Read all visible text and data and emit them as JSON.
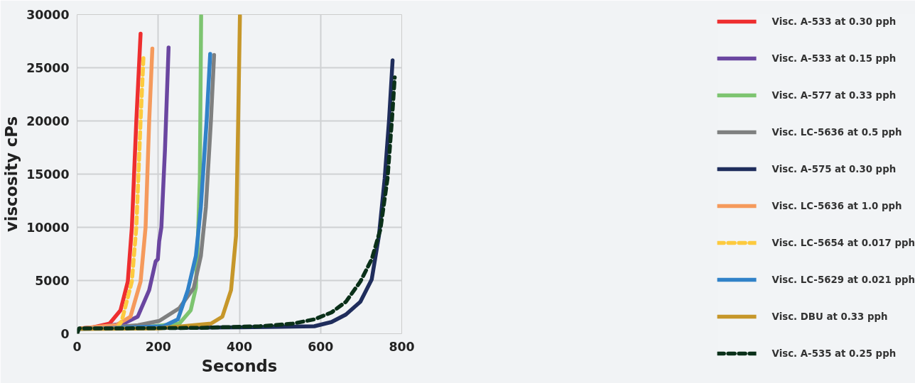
{
  "chart_data": {
    "type": "line",
    "xlabel": "Seconds",
    "ylabel": "viscosity cPs",
    "xlim": [
      0,
      800
    ],
    "xticks": [
      0,
      200,
      400,
      600,
      800
    ],
    "ylim": [
      0,
      30000
    ],
    "yticks": [
      0,
      5000,
      10000,
      15000,
      20000,
      25000,
      30000
    ],
    "grid": true,
    "legend": "right",
    "line_style": "solid",
    "series": [
      {
        "name": "Visc. A-533 at 0.30 pph",
        "color": "#ee2e2f",
        "x": [
          10,
          40,
          80,
          107,
          125,
          135,
          146,
          156.5
        ],
        "values": [
          500,
          600,
          950,
          2200,
          4900,
          10000,
          20000,
          28200
        ]
      },
      {
        "name": "Visc. A-533 at 0.15 pph",
        "color": "#6a46a0",
        "x": [
          10,
          60,
          114,
          149.4,
          177.7,
          193.6,
          199,
          202.4,
          207.7,
          216.6,
          225.5
        ],
        "values": [
          500,
          650,
          950,
          1600,
          4100,
          6800,
          7000,
          8700,
          10000,
          17300,
          26900
        ]
      },
      {
        "name": "Visc. A-577 at 0.33 pph",
        "color": "#7dc470",
        "x": [
          10,
          150,
          252,
          280,
          292.7,
          298,
          302.5,
          305.7
        ],
        "values": [
          500,
          550,
          950,
          2200,
          4300,
          9200,
          14600,
          29900
        ]
      },
      {
        "name": "Visc. LC-5636 at 0.5 pph",
        "color": "#7f8080",
        "x": [
          10,
          100,
          150,
          202.4,
          252,
          287.4,
          305,
          317.4,
          329.8,
          337.6
        ],
        "values": [
          500,
          650,
          800,
          1200,
          2400,
          4300,
          7300,
          11900,
          20000,
          26200
        ]
      },
      {
        "name": "Visc. A-575 at 0.30 pph",
        "color": "#1f2d5c",
        "x": [
          10,
          200,
          400,
          500,
          584.6,
          627,
          662.4,
          698,
          726,
          743.8,
          758,
          768.6,
          777.5
        ],
        "values": [
          500,
          550,
          600,
          650,
          700,
          1100,
          1800,
          3000,
          5100,
          9200,
          14600,
          20000,
          25700
        ]
      },
      {
        "name": "Visc. LC-5636 at 1.0 pph",
        "color": "#f59a5c",
        "x": [
          10,
          50,
          96,
          131.6,
          156.5,
          168.8,
          177.7,
          185.5
        ],
        "values": [
          500,
          650,
          800,
          1600,
          4900,
          10000,
          20000,
          26800
        ]
      },
      {
        "name": "Visc. LC-5654 at 0.017 pph",
        "color": "#fdca3e",
        "line_style": "dashed",
        "x": [
          100,
          110,
          135,
          146,
          156.5,
          163.5
        ],
        "values": [
          600,
          1200,
          4900,
          10000,
          20000,
          25900
        ]
      },
      {
        "name": "Visc. LC-5629 at 0.021 pph",
        "color": "#3182c8",
        "x": [
          10,
          100,
          213,
          248.4,
          273,
          292.7,
          305,
          319.2,
          328
        ],
        "values": [
          450,
          550,
          700,
          1350,
          4100,
          7300,
          11900,
          20000,
          26300
        ]
      },
      {
        "name": "Visc. DBU at 0.33 pph",
        "color": "#c6972a",
        "x": [
          10,
          200,
          330,
          358,
          379.4,
          391.7,
          397,
          401.3
        ],
        "values": [
          450,
          500,
          950,
          1600,
          4100,
          9200,
          20000,
          29900
        ]
      },
      {
        "name": "Visc. A-535 at 0.25 pph",
        "color": "#0a3019",
        "line_style": "dashed",
        "x": [
          0,
          5,
          100,
          300,
          450,
          531.5,
          584.6,
          627,
          662.4,
          698,
          726,
          747.4,
          765,
          775.7,
          782.8
        ],
        "values": [
          0,
          500,
          500,
          550,
          700,
          950,
          1350,
          2000,
          3000,
          4900,
          7000,
          9800,
          14600,
          20000,
          24100
        ]
      }
    ]
  }
}
